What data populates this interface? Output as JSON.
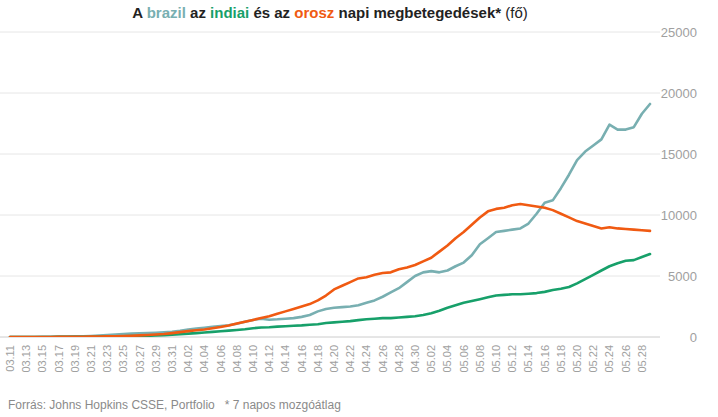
{
  "chart_data": {
    "type": "line",
    "title": "A brazil az indiai és az orosz napi megbetegedések* (fő)",
    "annotations": [
      "Forrás: Johns Hopkins CSSE, Portfolio",
      "* 7 napos mozgóátlag"
    ],
    "categories": [
      "03.11",
      null,
      "03.13",
      null,
      "03.15",
      null,
      "03.17",
      null,
      "03.19",
      null,
      "03.21",
      null,
      "03.23",
      null,
      "03.25",
      null,
      "03.27",
      null,
      "03.29",
      null,
      "03.31",
      null,
      "04.02",
      null,
      "04.04",
      null,
      "04.06",
      null,
      "04.08",
      null,
      "04.10",
      null,
      "04.12",
      null,
      "04.14",
      null,
      "04.16",
      null,
      "04.18",
      null,
      "04.20",
      null,
      "04.22",
      null,
      "04.24",
      null,
      "04.26",
      null,
      "04.28",
      null,
      "04.30",
      null,
      "05.02",
      null,
      "05.04",
      null,
      "05.06",
      null,
      "05.08",
      null,
      "05.10",
      null,
      "05.12",
      null,
      "05.14",
      null,
      "05.16",
      null,
      "05.18",
      null,
      "05.20",
      null,
      "05.22",
      null,
      "05.24",
      null,
      "05.26",
      null,
      "05.28",
      null
    ],
    "series": [
      {
        "name": "brazil",
        "color": "#78afb1",
        "values": [
          0,
          0,
          0,
          0,
          10,
          20,
          30,
          40,
          50,
          60,
          80,
          110,
          150,
          200,
          250,
          280,
          300,
          330,
          350,
          380,
          420,
          500,
          620,
          700,
          760,
          830,
          900,
          960,
          1080,
          1250,
          1400,
          1500,
          1420,
          1450,
          1500,
          1550,
          1650,
          1800,
          2100,
          2300,
          2400,
          2450,
          2500,
          2600,
          2800,
          3000,
          3300,
          3650,
          4000,
          4500,
          5000,
          5300,
          5400,
          5300,
          5450,
          5800,
          6100,
          6700,
          7600,
          8100,
          8600,
          8700,
          8800,
          8900,
          9300,
          10100,
          11000,
          11200,
          12200,
          13300,
          14500,
          15200,
          15700,
          16200,
          17400,
          17000,
          17000,
          17200,
          18300,
          19100
        ]
      },
      {
        "name": "indiai",
        "color": "#17a06a",
        "values": [
          0,
          0,
          0,
          0,
          0,
          5,
          10,
          10,
          15,
          20,
          25,
          30,
          40,
          50,
          60,
          70,
          80,
          100,
          120,
          150,
          180,
          230,
          280,
          320,
          370,
          420,
          470,
          520,
          580,
          640,
          720,
          780,
          800,
          850,
          880,
          920,
          950,
          1000,
          1050,
          1150,
          1200,
          1250,
          1300,
          1380,
          1450,
          1500,
          1550,
          1550,
          1600,
          1650,
          1700,
          1800,
          1950,
          2150,
          2400,
          2600,
          2800,
          2950,
          3100,
          3250,
          3400,
          3450,
          3500,
          3500,
          3550,
          3600,
          3700,
          3850,
          3950,
          4100,
          4400,
          4750,
          5100,
          5450,
          5800,
          6050,
          6250,
          6300,
          6550,
          6800
        ]
      },
      {
        "name": "orosz",
        "color": "#f05a12",
        "values": [
          0,
          0,
          0,
          0,
          0,
          5,
          10,
          15,
          20,
          25,
          30,
          40,
          50,
          60,
          80,
          100,
          130,
          160,
          200,
          250,
          320,
          400,
          480,
          550,
          620,
          720,
          820,
          950,
          1100,
          1250,
          1400,
          1550,
          1700,
          1900,
          2100,
          2300,
          2500,
          2700,
          3000,
          3400,
          3900,
          4200,
          4500,
          4800,
          4900,
          5100,
          5250,
          5300,
          5550,
          5700,
          5900,
          6200,
          6500,
          7000,
          7500,
          8100,
          8600,
          9200,
          9800,
          10300,
          10500,
          10600,
          10800,
          10900,
          10800,
          10700,
          10600,
          10400,
          10100,
          9800,
          9500,
          9300,
          9100,
          8900,
          9000,
          8900,
          8850,
          8800,
          8750,
          8700
        ]
      }
    ],
    "ylim": [
      0,
      25000
    ],
    "yticks": [
      0,
      5000,
      10000,
      15000,
      20000,
      25000
    ],
    "grid": true
  }
}
